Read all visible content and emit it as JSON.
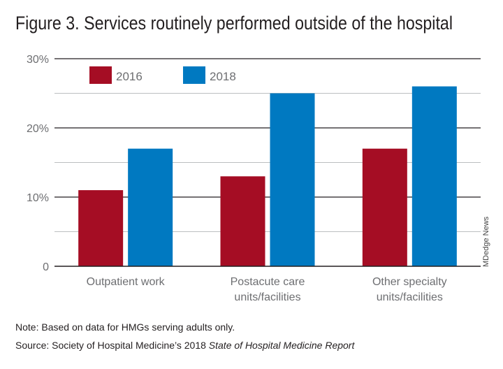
{
  "title": "Figure 3. Services routinely performed outside of the hospital",
  "note": {
    "label": "Note:",
    "text": " Based on data for HMGs serving adults only."
  },
  "source": {
    "label": "Source:",
    "text": " Society of Hospital Medicine’s 2018 ",
    "italic": "State of Hospital Medicine Report"
  },
  "credit": "MDedge News",
  "colors": {
    "series_2016": "#a50d24",
    "series_2018": "#0079c1",
    "axis_text": "#6d6e71"
  },
  "chart_data": {
    "type": "bar",
    "title": "Figure 3. Services routinely performed outside of the hospital",
    "xlabel": "",
    "ylabel": "",
    "ylim": [
      0,
      30
    ],
    "y_ticks": [
      "0",
      "10%",
      "20%",
      "30%"
    ],
    "y_tick_values": [
      0,
      10,
      20,
      30
    ],
    "grid": true,
    "legend_position": "top-left",
    "categories": [
      [
        "Outpatient work"
      ],
      [
        "Postacute care",
        "units/facilities"
      ],
      [
        "Other specialty",
        "units/facilities"
      ]
    ],
    "series": [
      {
        "name": "2016",
        "values": [
          11,
          13,
          17
        ],
        "color": "#a50d24"
      },
      {
        "name": "2018",
        "values": [
          17,
          25,
          26
        ],
        "color": "#0079c1"
      }
    ]
  }
}
